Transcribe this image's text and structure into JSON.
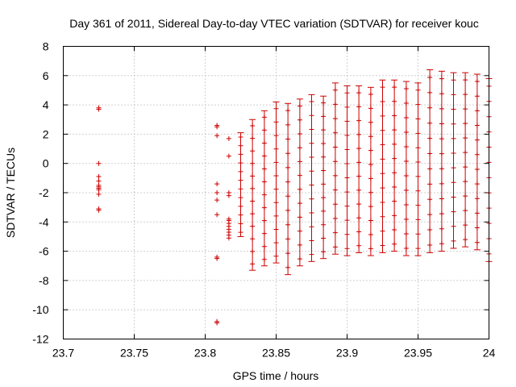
{
  "chart_data": {
    "type": "scatter",
    "title": "Day 361 of 2011, Sidereal Day-to-day VTEC variation (SDTVAR) for receiver kouc",
    "xlabel": "GPS time / hours",
    "ylabel": "SDTVAR / TECUs",
    "xlim": [
      23.7,
      24.0
    ],
    "ylim": [
      -12,
      8
    ],
    "x_ticks": [
      23.7,
      23.75,
      23.8,
      23.85,
      23.9,
      23.95,
      24.0
    ],
    "x_tick_labels": [
      "23.7",
      "23.75",
      "23.8",
      "23.85",
      "23.9",
      "23.95",
      "24"
    ],
    "y_ticks": [
      -12,
      -10,
      -8,
      -6,
      -4,
      -2,
      0,
      2,
      4,
      6,
      8
    ],
    "y_tick_labels": [
      "-12",
      "-10",
      "-8",
      "-6",
      "-4",
      "-2",
      "0",
      "2",
      "4",
      "6",
      "8"
    ],
    "grid": true,
    "series_color": "#cc0000",
    "points": [
      {
        "x": 23.725,
        "y": 3.8
      },
      {
        "x": 23.725,
        "y": 3.7
      },
      {
        "x": 23.725,
        "y": 0.0
      },
      {
        "x": 23.725,
        "y": -0.9
      },
      {
        "x": 23.725,
        "y": -1.2
      },
      {
        "x": 23.725,
        "y": -1.5
      },
      {
        "x": 23.725,
        "y": -1.6
      },
      {
        "x": 23.725,
        "y": -1.7
      },
      {
        "x": 23.725,
        "y": -1.8
      },
      {
        "x": 23.725,
        "y": -2.1
      },
      {
        "x": 23.725,
        "y": -3.1
      },
      {
        "x": 23.725,
        "y": -3.2
      },
      {
        "x": 23.8083,
        "y": 2.6
      },
      {
        "x": 23.8083,
        "y": 2.5
      },
      {
        "x": 23.8083,
        "y": 1.9
      },
      {
        "x": 23.8083,
        "y": -1.4
      },
      {
        "x": 23.8083,
        "y": -2.0
      },
      {
        "x": 23.8083,
        "y": -2.5
      },
      {
        "x": 23.8083,
        "y": -3.5
      },
      {
        "x": 23.8083,
        "y": -6.4
      },
      {
        "x": 23.8083,
        "y": -6.5
      },
      {
        "x": 23.8083,
        "y": -10.8
      },
      {
        "x": 23.8083,
        "y": -10.9
      },
      {
        "x": 23.8167,
        "y": 1.7
      },
      {
        "x": 23.8167,
        "y": 0.5
      },
      {
        "x": 23.8167,
        "y": -2.0
      },
      {
        "x": 23.8167,
        "y": -2.2
      },
      {
        "x": 23.8167,
        "y": -3.8
      },
      {
        "x": 23.8167,
        "y": -3.9
      },
      {
        "x": 23.8167,
        "y": -4.1
      },
      {
        "x": 23.8167,
        "y": -4.3
      },
      {
        "x": 23.8167,
        "y": -4.5
      },
      {
        "x": 23.8167,
        "y": -4.7
      },
      {
        "x": 23.8167,
        "y": -4.9
      },
      {
        "x": 23.8167,
        "y": -5.1
      }
    ],
    "error_bar_columns": [
      {
        "x": 23.825,
        "y_min": -5.0,
        "y_max": 2.1
      },
      {
        "x": 23.8333,
        "y_min": -7.3,
        "y_max": 3.0
      },
      {
        "x": 23.8417,
        "y_min": -7.0,
        "y_max": 3.6
      },
      {
        "x": 23.85,
        "y_min": -6.8,
        "y_max": 4.2
      },
      {
        "x": 23.8583,
        "y_min": -7.6,
        "y_max": 4.1
      },
      {
        "x": 23.8667,
        "y_min": -7.0,
        "y_max": 4.4
      },
      {
        "x": 23.875,
        "y_min": -6.7,
        "y_max": 4.7
      },
      {
        "x": 23.8833,
        "y_min": -6.5,
        "y_max": 4.6
      },
      {
        "x": 23.8917,
        "y_min": -6.2,
        "y_max": 5.5
      },
      {
        "x": 23.9,
        "y_min": -6.3,
        "y_max": 5.3
      },
      {
        "x": 23.9083,
        "y_min": -6.1,
        "y_max": 5.3
      },
      {
        "x": 23.9167,
        "y_min": -6.3,
        "y_max": 5.2
      },
      {
        "x": 23.925,
        "y_min": -6.1,
        "y_max": 5.7
      },
      {
        "x": 23.9333,
        "y_min": -6.0,
        "y_max": 5.7
      },
      {
        "x": 23.9417,
        "y_min": -6.3,
        "y_max": 5.6
      },
      {
        "x": 23.95,
        "y_min": -6.3,
        "y_max": 5.5
      },
      {
        "x": 23.9583,
        "y_min": -6.1,
        "y_max": 6.4
      },
      {
        "x": 23.9667,
        "y_min": -6.0,
        "y_max": 6.3
      },
      {
        "x": 23.975,
        "y_min": -5.8,
        "y_max": 6.2
      },
      {
        "x": 23.9833,
        "y_min": -5.7,
        "y_max": 6.2
      },
      {
        "x": 23.9917,
        "y_min": -5.9,
        "y_max": 6.1
      },
      {
        "x": 24.0,
        "y_min": -6.7,
        "y_max": 5.8
      }
    ]
  }
}
